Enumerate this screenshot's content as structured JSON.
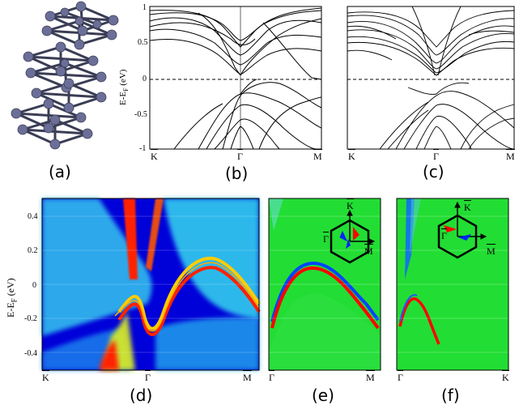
{
  "panels": {
    "a": {
      "label": "(a)"
    },
    "b": {
      "label": "(b)",
      "ylabel": "E-E",
      "ylabel_sub": "F",
      "ylabel_unit": " (eV)",
      "yticks": [
        "1",
        "0.5",
        "0",
        "-0.5",
        "-1"
      ],
      "xticks": [
        "K",
        "Γ",
        "M"
      ]
    },
    "c": {
      "label": "(c)",
      "xticks": [
        "K",
        "Γ",
        "M"
      ]
    },
    "d": {
      "label": "(d)",
      "ylabel": "E-E",
      "ylabel_sub": "F",
      "ylabel_unit": " (eV)",
      "yticks": [
        "0.4",
        "0.2",
        "0",
        "-0.2",
        "-0.4"
      ],
      "xticks": [
        "K",
        "Γ",
        "M"
      ]
    },
    "e": {
      "label": "(e)",
      "xticks": [
        "Γ",
        "M"
      ],
      "inset": {
        "k": "K",
        "g": "Γ",
        "m": "M"
      }
    },
    "f": {
      "label": "(f)",
      "xticks": [
        "Γ",
        "K"
      ],
      "inset": {
        "k": "K",
        "g": "Γ",
        "m": "M"
      }
    }
  },
  "colors": {
    "band_line": "#000000",
    "spectral_bg": "#0000d8",
    "green_bg": "#22dd33",
    "red": "#ff2200",
    "cyan": "#33ddee"
  }
}
